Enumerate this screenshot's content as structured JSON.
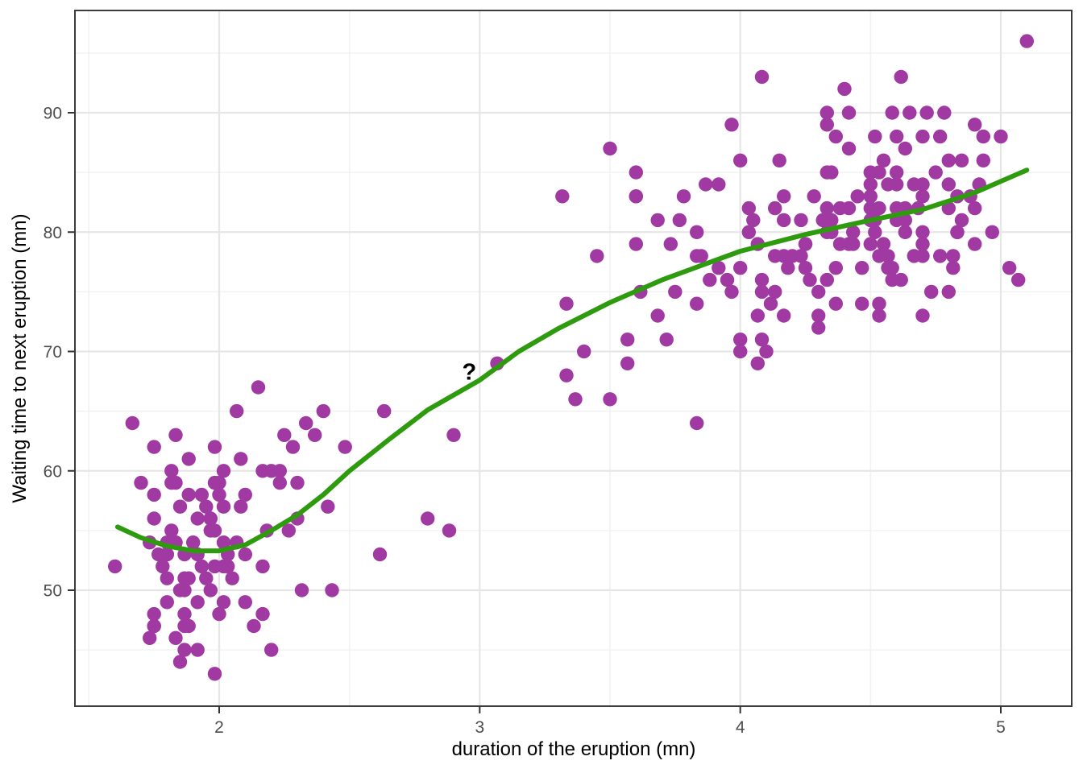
{
  "chart_data": {
    "type": "scatter",
    "title": "",
    "xlabel": "duration of the eruption (mn)",
    "ylabel": "Waiting time to next eruption (mn)",
    "x_ticks": [
      2,
      3,
      4,
      5
    ],
    "y_ticks": [
      50,
      60,
      70,
      80,
      90
    ],
    "x_minor_gridlines": [
      1.5,
      2.5,
      3.5,
      4.5
    ],
    "y_minor_gridlines": [
      45,
      55,
      65,
      75,
      85,
      95
    ],
    "xlim": [
      1.425,
      5.275
    ],
    "ylim": [
      40.3,
      98.7
    ],
    "grid": "major and minor, light gray on white panel",
    "legend": "none",
    "series": [
      {
        "name": "observations",
        "type": "scatter",
        "color": "#A139A3",
        "points": [
          [
            3.6,
            79
          ],
          [
            1.8,
            54
          ],
          [
            3.333,
            74
          ],
          [
            2.283,
            62
          ],
          [
            4.533,
            85
          ],
          [
            2.883,
            55
          ],
          [
            4.7,
            88
          ],
          [
            3.6,
            85
          ],
          [
            1.95,
            51
          ],
          [
            4.35,
            85
          ],
          [
            1.833,
            54
          ],
          [
            3.917,
            84
          ],
          [
            4.2,
            78
          ],
          [
            1.75,
            47
          ],
          [
            4.7,
            83
          ],
          [
            2.167,
            52
          ],
          [
            1.75,
            62
          ],
          [
            4.8,
            84
          ],
          [
            1.6,
            52
          ],
          [
            4.25,
            79
          ],
          [
            1.8,
            51
          ],
          [
            1.75,
            47
          ],
          [
            3.45,
            78
          ],
          [
            3.067,
            69
          ],
          [
            4.533,
            74
          ],
          [
            3.6,
            83
          ],
          [
            1.967,
            55
          ],
          [
            4.083,
            76
          ],
          [
            3.85,
            78
          ],
          [
            4.433,
            79
          ],
          [
            4.3,
            73
          ],
          [
            4.467,
            77
          ],
          [
            3.367,
            66
          ],
          [
            4.033,
            80
          ],
          [
            3.833,
            74
          ],
          [
            2.017,
            52
          ],
          [
            1.867,
            48
          ],
          [
            4.833,
            80
          ],
          [
            1.833,
            59
          ],
          [
            4.783,
            90
          ],
          [
            4.35,
            80
          ],
          [
            1.883,
            58
          ],
          [
            4.567,
            84
          ],
          [
            1.75,
            58
          ],
          [
            4.533,
            73
          ],
          [
            3.317,
            83
          ],
          [
            3.833,
            64
          ],
          [
            2.1,
            53
          ],
          [
            4.633,
            82
          ],
          [
            2.0,
            59
          ],
          [
            4.8,
            75
          ],
          [
            4.716,
            90
          ],
          [
            1.833,
            54
          ],
          [
            4.833,
            80
          ],
          [
            1.733,
            54
          ],
          [
            4.883,
            83
          ],
          [
            3.717,
            71
          ],
          [
            1.667,
            64
          ],
          [
            4.567,
            77
          ],
          [
            4.317,
            81
          ],
          [
            2.233,
            59
          ],
          [
            4.5,
            84
          ],
          [
            1.75,
            48
          ],
          [
            4.8,
            82
          ],
          [
            1.817,
            60
          ],
          [
            4.4,
            92
          ],
          [
            4.167,
            78
          ],
          [
            4.7,
            78
          ],
          [
            2.067,
            65
          ],
          [
            4.7,
            73
          ],
          [
            4.033,
            82
          ],
          [
            1.967,
            56
          ],
          [
            4.5,
            79
          ],
          [
            4.0,
            71
          ],
          [
            1.983,
            62
          ],
          [
            5.067,
            76
          ],
          [
            2.017,
            60
          ],
          [
            4.567,
            78
          ],
          [
            3.883,
            76
          ],
          [
            3.6,
            83
          ],
          [
            4.133,
            75
          ],
          [
            4.333,
            82
          ],
          [
            4.1,
            70
          ],
          [
            2.633,
            65
          ],
          [
            4.067,
            73
          ],
          [
            4.933,
            88
          ],
          [
            3.95,
            76
          ],
          [
            4.517,
            80
          ],
          [
            2.167,
            48
          ],
          [
            4.0,
            86
          ],
          [
            2.2,
            60
          ],
          [
            4.333,
            90
          ],
          [
            1.867,
            50
          ],
          [
            4.817,
            78
          ],
          [
            1.833,
            63
          ],
          [
            4.3,
            72
          ],
          [
            4.667,
            84
          ],
          [
            3.75,
            75
          ],
          [
            1.867,
            51
          ],
          [
            4.9,
            82
          ],
          [
            2.483,
            62
          ],
          [
            4.367,
            88
          ],
          [
            2.1,
            49
          ],
          [
            4.5,
            83
          ],
          [
            4.05,
            81
          ],
          [
            1.867,
            47
          ],
          [
            4.7,
            84
          ],
          [
            1.783,
            52
          ],
          [
            4.85,
            86
          ],
          [
            3.683,
            81
          ],
          [
            4.733,
            75
          ],
          [
            2.3,
            59
          ],
          [
            4.9,
            89
          ],
          [
            4.417,
            79
          ],
          [
            1.7,
            59
          ],
          [
            4.633,
            81
          ],
          [
            2.317,
            50
          ],
          [
            4.6,
            85
          ],
          [
            1.817,
            59
          ],
          [
            4.417,
            87
          ],
          [
            2.617,
            53
          ],
          [
            4.067,
            69
          ],
          [
            4.25,
            77
          ],
          [
            1.967,
            56
          ],
          [
            4.6,
            88
          ],
          [
            3.767,
            81
          ],
          [
            1.917,
            45
          ],
          [
            4.5,
            82
          ],
          [
            2.267,
            55
          ],
          [
            4.65,
            90
          ],
          [
            1.867,
            45
          ],
          [
            4.167,
            83
          ],
          [
            2.8,
            56
          ],
          [
            4.333,
            89
          ],
          [
            1.833,
            46
          ],
          [
            4.383,
            82
          ],
          [
            1.883,
            51
          ],
          [
            4.933,
            86
          ],
          [
            2.033,
            53
          ],
          [
            3.733,
            79
          ],
          [
            4.233,
            81
          ],
          [
            2.233,
            60
          ],
          [
            4.533,
            82
          ],
          [
            4.817,
            77
          ],
          [
            4.333,
            76
          ],
          [
            1.983,
            59
          ],
          [
            4.633,
            80
          ],
          [
            2.017,
            49
          ],
          [
            5.1,
            96
          ],
          [
            1.8,
            53
          ],
          [
            5.033,
            77
          ],
          [
            4.0,
            77
          ],
          [
            2.4,
            65
          ],
          [
            4.6,
            81
          ],
          [
            3.567,
            71
          ],
          [
            4.0,
            70
          ],
          [
            4.5,
            81
          ],
          [
            4.083,
            93
          ],
          [
            1.8,
            53
          ],
          [
            3.967,
            89
          ],
          [
            2.2,
            45
          ],
          [
            4.15,
            86
          ],
          [
            2.0,
            58
          ],
          [
            3.833,
            78
          ],
          [
            3.5,
            66
          ],
          [
            4.583,
            76
          ],
          [
            2.367,
            63
          ],
          [
            5.0,
            88
          ],
          [
            1.933,
            52
          ],
          [
            4.617,
            93
          ],
          [
            1.917,
            49
          ],
          [
            2.083,
            57
          ],
          [
            4.583,
            77
          ],
          [
            3.333,
            68
          ],
          [
            4.167,
            81
          ],
          [
            4.333,
            81
          ],
          [
            4.167,
            73
          ],
          [
            4.417,
            90
          ],
          [
            1.883,
            47
          ],
          [
            4.6,
            84
          ],
          [
            2.033,
            52
          ],
          [
            4.133,
            78
          ],
          [
            4.333,
            80
          ],
          [
            1.983,
            43
          ],
          [
            4.767,
            78
          ],
          [
            2.017,
            54
          ],
          [
            4.7,
            79
          ],
          [
            1.767,
            53
          ],
          [
            4.917,
            84
          ],
          [
            3.867,
            84
          ],
          [
            1.9,
            54
          ],
          [
            4.367,
            77
          ],
          [
            2.15,
            67
          ],
          [
            4.5,
            85
          ],
          [
            4.583,
            90
          ],
          [
            2.05,
            51
          ],
          [
            3.567,
            69
          ],
          [
            4.25,
            79
          ],
          [
            1.983,
            55
          ],
          [
            4.433,
            80
          ],
          [
            2.333,
            64
          ],
          [
            4.683,
            82
          ],
          [
            1.733,
            46
          ],
          [
            4.3,
            75
          ],
          [
            3.917,
            77
          ],
          [
            2.1,
            58
          ],
          [
            4.8,
            86
          ],
          [
            1.85,
            50
          ],
          [
            4.55,
            79
          ],
          [
            4.083,
            71
          ],
          [
            2.433,
            50
          ],
          [
            4.633,
            87
          ],
          [
            1.95,
            57
          ],
          [
            4.367,
            74
          ],
          [
            2.183,
            55
          ],
          [
            4.45,
            83
          ],
          [
            3.5,
            87
          ],
          [
            4.133,
            82
          ],
          [
            1.867,
            53
          ],
          [
            4.7,
            80
          ],
          [
            2.083,
            61
          ],
          [
            4.85,
            81
          ],
          [
            1.917,
            56
          ],
          [
            4.267,
            76
          ],
          [
            3.4,
            70
          ],
          [
            4.517,
            88
          ],
          [
            1.8,
            49
          ],
          [
            4.083,
            75
          ],
          [
            2.9,
            63
          ],
          [
            4.9,
            79
          ],
          [
            1.967,
            50
          ],
          [
            4.617,
            76
          ],
          [
            4.333,
            85
          ],
          [
            2.017,
            57
          ],
          [
            3.833,
            80
          ],
          [
            4.75,
            85
          ],
          [
            1.85,
            57
          ],
          [
            4.417,
            82
          ],
          [
            2.25,
            63
          ],
          [
            4.067,
            79
          ],
          [
            3.617,
            75
          ],
          [
            4.533,
            78
          ],
          [
            1.917,
            53
          ],
          [
            4.967,
            80
          ],
          [
            2.167,
            60
          ],
          [
            4.383,
            79
          ],
          [
            1.75,
            56
          ],
          [
            4.283,
            83
          ],
          [
            3.783,
            83
          ],
          [
            4.767,
            88
          ],
          [
            1.883,
            61
          ],
          [
            4.117,
            74
          ],
          [
            2.3,
            56
          ],
          [
            4.667,
            78
          ],
          [
            2.0,
            48
          ],
          [
            4.55,
            86
          ],
          [
            3.967,
            75
          ],
          [
            1.817,
            55
          ],
          [
            4.35,
            81
          ],
          [
            2.417,
            57
          ],
          [
            4.833,
            83
          ],
          [
            1.933,
            58
          ],
          [
            4.183,
            77
          ],
          [
            3.683,
            73
          ],
          [
            4.6,
            82
          ],
          [
            2.133,
            47
          ],
          [
            4.467,
            74
          ],
          [
            1.85,
            44
          ],
          [
            4.233,
            78
          ],
          [
            2.067,
            54
          ],
          [
            4.517,
            81
          ],
          [
            1.983,
            52
          ]
        ]
      },
      {
        "name": "smooth-trend",
        "type": "line",
        "color": "#2E9B0E",
        "points": [
          [
            1.61,
            55.3
          ],
          [
            1.7,
            54.4
          ],
          [
            1.8,
            53.7
          ],
          [
            1.9,
            53.3
          ],
          [
            2.0,
            53.3
          ],
          [
            2.1,
            53.8
          ],
          [
            2.2,
            55.0
          ],
          [
            2.3,
            56.3
          ],
          [
            2.4,
            58.0
          ],
          [
            2.5,
            60.0
          ],
          [
            2.65,
            62.6
          ],
          [
            2.8,
            65.1
          ],
          [
            3.0,
            67.6
          ],
          [
            3.15,
            70.0
          ],
          [
            3.3,
            71.9
          ],
          [
            3.5,
            74.1
          ],
          [
            3.7,
            76.0
          ],
          [
            3.9,
            77.6
          ],
          [
            4.0,
            78.4
          ],
          [
            4.25,
            79.8
          ],
          [
            4.5,
            81.0
          ],
          [
            4.7,
            81.9
          ],
          [
            4.9,
            83.3
          ],
          [
            5.1,
            85.2
          ]
        ]
      }
    ],
    "annotations": [
      {
        "text": "?",
        "x": 2.96,
        "y": 68.3,
        "color": "#000000",
        "bold": true
      }
    ]
  },
  "style": {
    "point_color": "#A139A3",
    "line_color": "#2E9B0E",
    "grid_major_color": "#E6E6E6",
    "grid_minor_color": "#F2F2F2",
    "panel_border_color": "#3C3C3C",
    "tick_color": "#333333",
    "tick_label_color": "#4D4D4D",
    "axis_title_color": "#000000",
    "background_color": "#FFFFFF"
  }
}
